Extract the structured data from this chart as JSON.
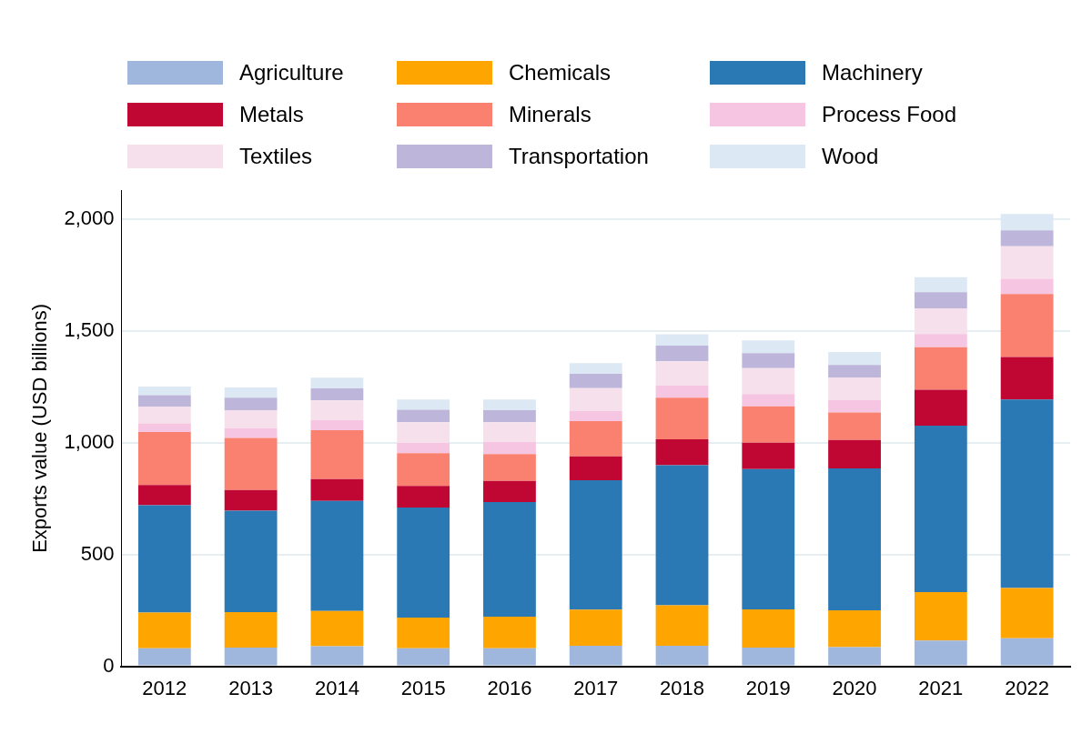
{
  "chart_data": {
    "type": "bar",
    "stacked": true,
    "ylabel": "Exports value (USD billions)",
    "categories": [
      "2012",
      "2013",
      "2014",
      "2015",
      "2016",
      "2017",
      "2018",
      "2019",
      "2020",
      "2021",
      "2022"
    ],
    "series": [
      {
        "name": "Agriculture",
        "color": "#9fb7dc",
        "values": [
          81,
          84,
          90,
          81,
          81,
          92,
          92,
          84,
          86,
          115,
          126
        ]
      },
      {
        "name": "Chemicals",
        "color": "#ffa500",
        "values": [
          160,
          159,
          158,
          137,
          141,
          162,
          181,
          171,
          165,
          217,
          224
        ]
      },
      {
        "name": "Machinery",
        "color": "#2a78b4",
        "values": [
          480,
          453,
          492,
          493,
          513,
          579,
          627,
          627,
          635,
          745,
          844
        ]
      },
      {
        "name": "Metals",
        "color": "#c00633",
        "values": [
          90,
          93,
          98,
          96,
          95,
          106,
          116,
          119,
          127,
          161,
          190
        ]
      },
      {
        "name": "Minerals",
        "color": "#fa8070",
        "values": [
          237,
          233,
          218,
          147,
          120,
          158,
          186,
          162,
          123,
          190,
          282
        ]
      },
      {
        "name": "Process Food",
        "color": "#f5c5e2",
        "values": [
          39,
          44,
          46,
          45,
          55,
          45,
          55,
          55,
          55,
          59,
          68
        ]
      },
      {
        "name": "Textiles",
        "color": "#f6e0ec",
        "values": [
          75,
          80,
          88,
          93,
          87,
          103,
          108,
          116,
          101,
          115,
          146
        ]
      },
      {
        "name": "Transportation",
        "color": "#bdb6da",
        "values": [
          51,
          56,
          54,
          56,
          54,
          64,
          70,
          67,
          56,
          72,
          71
        ]
      },
      {
        "name": "Wood",
        "color": "#dde8f5",
        "values": [
          39,
          46,
          47,
          46,
          48,
          48,
          51,
          57,
          58,
          67,
          73
        ]
      }
    ],
    "ylim": [
      0,
      2130
    ],
    "yticks": [
      0,
      500,
      {
        "value": 1000,
        "label": "1,000"
      },
      {
        "value": 1500,
        "label": "1,500"
      },
      {
        "value": 2000,
        "label": "2,000"
      }
    ],
    "grid": "y",
    "legend": "top"
  }
}
